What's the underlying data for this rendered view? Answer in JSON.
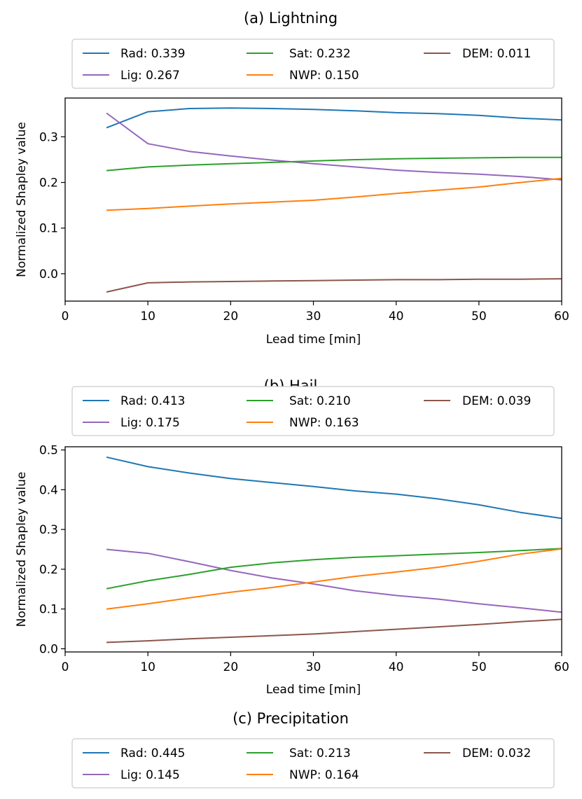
{
  "chart_data": [
    {
      "type": "line",
      "title": "(a) Lightning",
      "xlabel": "Lead time [min]",
      "ylabel": "Normalized Shapley value",
      "xlim": [
        0,
        60
      ],
      "ylim": [
        -0.06,
        0.385
      ],
      "xticks": [
        0,
        10,
        20,
        30,
        40,
        50,
        60
      ],
      "xtick_labels": [
        "0",
        "10",
        "20",
        "30",
        "40",
        "50",
        "60"
      ],
      "yticks": [
        0.0,
        0.1,
        0.2,
        0.3
      ],
      "ytick_labels": [
        "0.0",
        "0.1",
        "0.2",
        "0.3"
      ],
      "x": [
        5,
        10,
        15,
        20,
        25,
        30,
        35,
        40,
        45,
        50,
        55,
        60
      ],
      "series": [
        {
          "name": "Rad",
          "legend": "Rad: 0.339",
          "color": "#1f77b4",
          "values": [
            0.32,
            0.355,
            0.362,
            0.363,
            0.362,
            0.36,
            0.357,
            0.353,
            0.351,
            0.347,
            0.341,
            0.337
          ]
        },
        {
          "name": "Lig",
          "legend": "Lig: 0.267",
          "color": "#9467bd",
          "values": [
            0.352,
            0.285,
            0.268,
            0.258,
            0.249,
            0.241,
            0.234,
            0.227,
            0.222,
            0.218,
            0.213,
            0.206
          ]
        },
        {
          "name": "Sat",
          "legend": "Sat: 0.232",
          "color": "#2ca02c",
          "values": [
            0.226,
            0.234,
            0.238,
            0.241,
            0.244,
            0.247,
            0.25,
            0.252,
            0.253,
            0.254,
            0.255,
            0.255
          ]
        },
        {
          "name": "NWP",
          "legend": "NWP: 0.150",
          "color": "#ff7f0e",
          "values": [
            0.139,
            0.143,
            0.148,
            0.153,
            0.157,
            0.161,
            0.168,
            0.176,
            0.183,
            0.19,
            0.2,
            0.209
          ]
        },
        {
          "name": "DEM",
          "legend": "DEM: 0.011",
          "color": "#8c564b",
          "values": [
            -0.04,
            -0.02,
            -0.018,
            -0.017,
            -0.016,
            -0.015,
            -0.014,
            -0.013,
            -0.013,
            -0.012,
            -0.012,
            -0.011
          ]
        }
      ]
    },
    {
      "type": "line",
      "title": "(b) Hail",
      "xlabel": "Lead time [min]",
      "ylabel": "Normalized Shapley value",
      "xlim": [
        0,
        60
      ],
      "ylim": [
        -0.008,
        0.508
      ],
      "xticks": [
        0,
        10,
        20,
        30,
        40,
        50,
        60
      ],
      "xtick_labels": [
        "0",
        "10",
        "20",
        "30",
        "40",
        "50",
        "60"
      ],
      "yticks": [
        0.0,
        0.1,
        0.2,
        0.3,
        0.4,
        0.5
      ],
      "ytick_labels": [
        "0.0",
        "0.1",
        "0.2",
        "0.3",
        "0.4",
        "0.5"
      ],
      "x": [
        5,
        10,
        15,
        20,
        25,
        30,
        35,
        40,
        45,
        50,
        55,
        60
      ],
      "series": [
        {
          "name": "Rad",
          "legend": "Rad: 0.413",
          "color": "#1f77b4",
          "values": [
            0.482,
            0.458,
            0.442,
            0.428,
            0.418,
            0.408,
            0.397,
            0.389,
            0.377,
            0.362,
            0.343,
            0.328
          ]
        },
        {
          "name": "Lig",
          "legend": "Lig: 0.175",
          "color": "#9467bd",
          "values": [
            0.25,
            0.24,
            0.219,
            0.197,
            0.178,
            0.163,
            0.146,
            0.134,
            0.125,
            0.113,
            0.103,
            0.092
          ]
        },
        {
          "name": "Sat",
          "legend": "Sat: 0.210",
          "color": "#2ca02c",
          "values": [
            0.151,
            0.171,
            0.187,
            0.205,
            0.216,
            0.224,
            0.23,
            0.234,
            0.238,
            0.242,
            0.247,
            0.252
          ]
        },
        {
          "name": "NWP",
          "legend": "NWP: 0.163",
          "color": "#ff7f0e",
          "values": [
            0.1,
            0.113,
            0.128,
            0.142,
            0.154,
            0.168,
            0.182,
            0.193,
            0.205,
            0.22,
            0.238,
            0.251
          ]
        },
        {
          "name": "DEM",
          "legend": "DEM: 0.039",
          "color": "#8c564b",
          "values": [
            0.016,
            0.02,
            0.025,
            0.029,
            0.033,
            0.037,
            0.043,
            0.049,
            0.055,
            0.061,
            0.068,
            0.074
          ]
        }
      ]
    },
    {
      "type": "line",
      "title": "(c) Precipitation",
      "legend_only": true,
      "series": [
        {
          "name": "Rad",
          "legend": "Rad: 0.445",
          "color": "#1f77b4"
        },
        {
          "name": "Lig",
          "legend": "Lig: 0.145",
          "color": "#9467bd"
        },
        {
          "name": "Sat",
          "legend": "Sat: 0.213",
          "color": "#2ca02c"
        },
        {
          "name": "NWP",
          "legend": "NWP: 0.164",
          "color": "#ff7f0e"
        },
        {
          "name": "DEM",
          "legend": "DEM: 0.032",
          "color": "#8c564b"
        }
      ]
    }
  ]
}
